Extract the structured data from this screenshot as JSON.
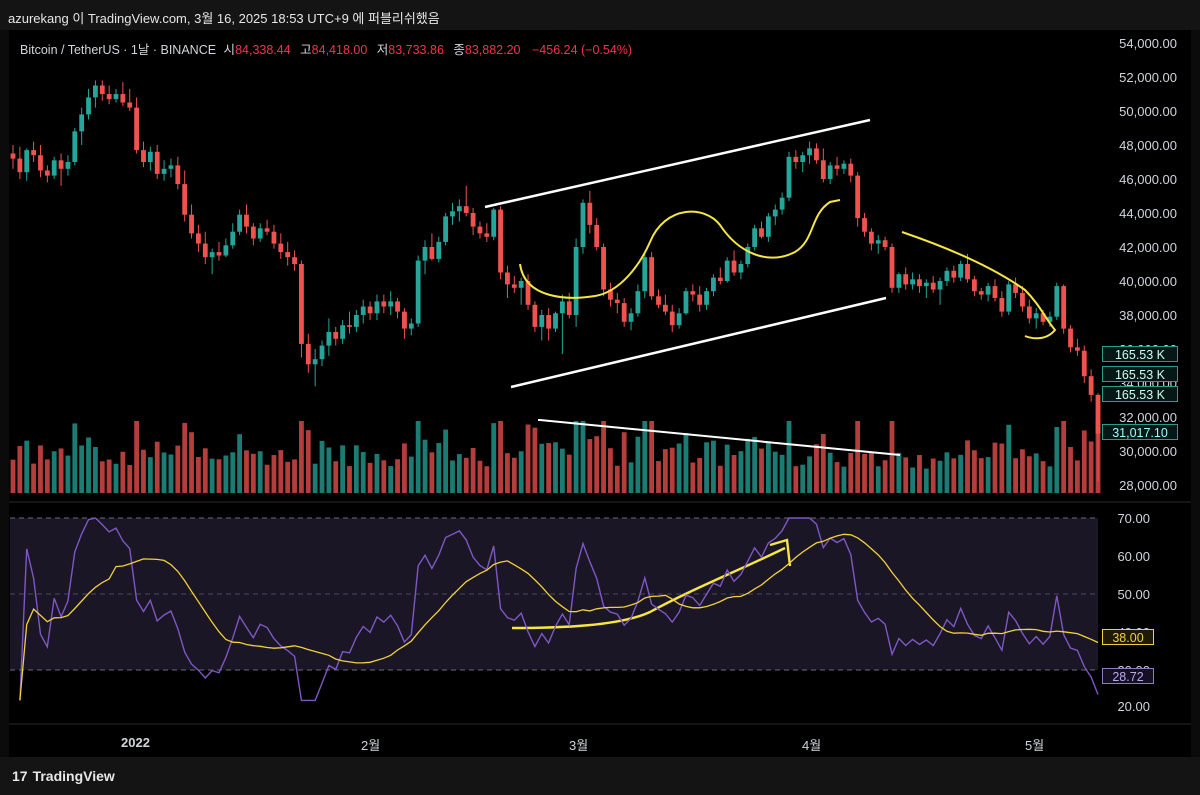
{
  "header": {
    "caption": "azurekang 이 TradingView.com, 3월 16, 2025 18:53 UTC+9 에 퍼블리쉬했음"
  },
  "legend": {
    "symbol": "Bitcoin / TetherUS · 1날 · BINANCE",
    "open_label": "시",
    "open_value": "84,338.44",
    "high_label": "고",
    "high_value": "84,418.00",
    "low_label": "저",
    "low_value": "83,733.86",
    "close_label": "종",
    "close_value": "83,882.20",
    "change": "−456.24 (−0.54%)"
  },
  "price_axis": [
    "54,000.00",
    "52,000.00",
    "50,000.00",
    "48,000.00",
    "46,000.00",
    "44,000.00",
    "42,000.00",
    "40,000.00",
    "38,000.00",
    "36,000.00",
    "34,000.00",
    "32,000.00",
    "30,000.00",
    "28,000.00"
  ],
  "price_tags": [
    {
      "label": "165.53 K",
      "kind": "volume"
    },
    {
      "label": "165.53 K",
      "kind": "volume"
    },
    {
      "label": "165.53 K",
      "kind": "volume"
    },
    {
      "label": "31,017.10",
      "kind": "price"
    }
  ],
  "rsi_axis": [
    "70.00",
    "60.00",
    "50.00",
    "40.00",
    "30.00",
    "20.00"
  ],
  "rsi_tags": [
    {
      "label": "38.00",
      "color": "#f0d13a"
    },
    {
      "label": "28.72",
      "color": "#8e7cc3"
    }
  ],
  "time_axis": [
    "2022",
    "2월",
    "3월",
    "4월",
    "5월"
  ],
  "footer": {
    "brand": "TradingView",
    "logo": "tradingview-logo-icon"
  },
  "colors": {
    "up": "#26a69a",
    "down": "#ef5350",
    "rsi": "#7e57c2",
    "rsi_ma": "#f0d13a",
    "annotation": "#f5e642",
    "trendline": "#ffffff",
    "background": "#000000"
  },
  "chart_data": {
    "type": "candlestick",
    "symbol": "BTCUSDT",
    "interval": "1D",
    "ylim": [
      28000,
      54000
    ],
    "candles_ohlc": [
      [
        47500,
        48000,
        46600,
        47200
      ],
      [
        47200,
        47900,
        46000,
        46400
      ],
      [
        46400,
        47800,
        45900,
        47700
      ],
      [
        47700,
        48200,
        47000,
        47400
      ],
      [
        47400,
        48000,
        46100,
        46500
      ],
      [
        46500,
        46800,
        45800,
        46200
      ],
      [
        46200,
        47300,
        46000,
        47100
      ],
      [
        47100,
        47500,
        45600,
        46600
      ],
      [
        46600,
        47400,
        46200,
        47000
      ],
      [
        47000,
        49000,
        46800,
        48800
      ],
      [
        48800,
        50200,
        48000,
        49800
      ],
      [
        49800,
        51300,
        49500,
        50800
      ],
      [
        50800,
        51800,
        50200,
        51500
      ],
      [
        51500,
        51800,
        50600,
        51000
      ],
      [
        51000,
        51500,
        50400,
        50700
      ],
      [
        50700,
        51300,
        50500,
        51000
      ],
      [
        51000,
        51700,
        50300,
        50500
      ],
      [
        50500,
        51300,
        50000,
        50200
      ],
      [
        50200,
        50800,
        47500,
        47700
      ],
      [
        47700,
        48200,
        46700,
        47000
      ],
      [
        47000,
        47900,
        46500,
        47600
      ],
      [
        47600,
        48000,
        46000,
        46300
      ],
      [
        46300,
        47100,
        45900,
        46600
      ],
      [
        46600,
        47200,
        46100,
        46800
      ],
      [
        46800,
        47300,
        45400,
        45700
      ],
      [
        45700,
        46500,
        43500,
        43900
      ],
      [
        43900,
        44500,
        42500,
        42800
      ],
      [
        42800,
        43300,
        41700,
        42200
      ],
      [
        42200,
        42900,
        41000,
        41400
      ],
      [
        41400,
        41900,
        40400,
        41700
      ],
      [
        41700,
        42300,
        41200,
        41500
      ],
      [
        41500,
        42500,
        41400,
        42100
      ],
      [
        42100,
        43400,
        41900,
        42900
      ],
      [
        42900,
        44200,
        42700,
        43900
      ],
      [
        43900,
        44500,
        42800,
        43200
      ],
      [
        43200,
        43400,
        42100,
        42500
      ],
      [
        42500,
        43400,
        42300,
        43100
      ],
      [
        43100,
        43600,
        42700,
        42900
      ],
      [
        42900,
        43300,
        41900,
        42200
      ],
      [
        42200,
        42800,
        41300,
        41700
      ],
      [
        41700,
        42300,
        40900,
        41400
      ],
      [
        41400,
        41800,
        40600,
        41000
      ],
      [
        41000,
        41200,
        35500,
        36300
      ],
      [
        36300,
        36900,
        34600,
        35100
      ],
      [
        35100,
        36000,
        33800,
        35400
      ],
      [
        35400,
        36500,
        35000,
        36200
      ],
      [
        36200,
        37800,
        35600,
        37000
      ],
      [
        37000,
        37300,
        36200,
        36600
      ],
      [
        36600,
        37700,
        36300,
        37400
      ],
      [
        37400,
        38200,
        36900,
        37300
      ],
      [
        37300,
        38300,
        37000,
        38000
      ],
      [
        38000,
        38900,
        37500,
        38500
      ],
      [
        38500,
        38800,
        37700,
        38100
      ],
      [
        38100,
        39200,
        37700,
        38800
      ],
      [
        38800,
        39200,
        38100,
        38500
      ],
      [
        38500,
        39400,
        38000,
        38800
      ],
      [
        38800,
        39000,
        37800,
        38200
      ],
      [
        38200,
        38400,
        36600,
        37200
      ],
      [
        37200,
        37800,
        36800,
        37500
      ],
      [
        37500,
        41500,
        37300,
        41200
      ],
      [
        41200,
        42400,
        40400,
        42000
      ],
      [
        42000,
        42800,
        41200,
        41300
      ],
      [
        41300,
        42600,
        41100,
        42300
      ],
      [
        42300,
        44000,
        42100,
        43800
      ],
      [
        43800,
        44600,
        43300,
        44100
      ],
      [
        44100,
        44800,
        43500,
        44400
      ],
      [
        44400,
        45600,
        43800,
        44000
      ],
      [
        44000,
        44300,
        42700,
        43200
      ],
      [
        43200,
        43500,
        42500,
        42800
      ],
      [
        42800,
        43400,
        42300,
        42600
      ],
      [
        42600,
        44300,
        42400,
        44200
      ],
      [
        44200,
        44400,
        40100,
        40500
      ],
      [
        40500,
        40900,
        39000,
        39800
      ],
      [
        39800,
        40300,
        39300,
        39600
      ],
      [
        39600,
        40200,
        38600,
        40000
      ],
      [
        40000,
        40400,
        38300,
        38600
      ],
      [
        38600,
        38800,
        37000,
        37300
      ],
      [
        37300,
        38300,
        36500,
        38000
      ],
      [
        38000,
        38400,
        36500,
        37200
      ],
      [
        37200,
        38200,
        37000,
        38100
      ],
      [
        38100,
        39200,
        35700,
        38800
      ],
      [
        38800,
        39300,
        37800,
        38000
      ],
      [
        38000,
        42500,
        37300,
        42000
      ],
      [
        42000,
        44800,
        41600,
        44600
      ],
      [
        44600,
        45300,
        42800,
        43300
      ],
      [
        43300,
        43700,
        41800,
        42000
      ],
      [
        42000,
        42200,
        39100,
        39500
      ],
      [
        39500,
        39900,
        38500,
        38900
      ],
      [
        38900,
        39300,
        38100,
        38700
      ],
      [
        38700,
        39000,
        37300,
        37600
      ],
      [
        37600,
        38400,
        37100,
        38100
      ],
      [
        38100,
        39800,
        37900,
        39400
      ],
      [
        39400,
        41600,
        39000,
        41400
      ],
      [
        41400,
        41700,
        38900,
        39100
      ],
      [
        39100,
        39500,
        38400,
        38600
      ],
      [
        38600,
        39200,
        38000,
        38200
      ],
      [
        38200,
        38600,
        37000,
        37400
      ],
      [
        37400,
        38400,
        37200,
        38100
      ],
      [
        38100,
        39600,
        38000,
        39400
      ],
      [
        39400,
        39800,
        38800,
        39200
      ],
      [
        39200,
        39700,
        38200,
        38600
      ],
      [
        38600,
        39600,
        38300,
        39400
      ],
      [
        39400,
        40400,
        39100,
        40200
      ],
      [
        40200,
        40800,
        39800,
        40000
      ],
      [
        40000,
        41400,
        39900,
        41200
      ],
      [
        41200,
        41800,
        40300,
        40500
      ],
      [
        40500,
        41200,
        40100,
        41000
      ],
      [
        41000,
        42200,
        40800,
        42000
      ],
      [
        42000,
        43300,
        41800,
        43100
      ],
      [
        43100,
        43500,
        42500,
        42600
      ],
      [
        42600,
        44000,
        42300,
        43800
      ],
      [
        43800,
        44500,
        43300,
        44200
      ],
      [
        44200,
        45200,
        43900,
        44900
      ],
      [
        44900,
        47600,
        44700,
        47300
      ],
      [
        47300,
        47700,
        46600,
        47000
      ],
      [
        47000,
        47600,
        46400,
        47400
      ],
      [
        47400,
        48200,
        46900,
        47800
      ],
      [
        47800,
        48100,
        46900,
        47100
      ],
      [
        47100,
        47800,
        45800,
        46000
      ],
      [
        46000,
        47000,
        45700,
        46800
      ],
      [
        46800,
        47300,
        46200,
        46600
      ],
      [
        46600,
        47100,
        46300,
        46900
      ],
      [
        46900,
        47200,
        45800,
        46200
      ],
      [
        46200,
        46400,
        43200,
        43700
      ],
      [
        43700,
        44000,
        42600,
        42900
      ],
      [
        42900,
        43100,
        41800,
        42200
      ],
      [
        42200,
        42700,
        41600,
        42400
      ],
      [
        42400,
        42600,
        41800,
        42000
      ],
      [
        42000,
        42200,
        39300,
        39600
      ],
      [
        39600,
        40500,
        39300,
        40400
      ],
      [
        40400,
        40800,
        39500,
        39800
      ],
      [
        39800,
        40500,
        39500,
        40100
      ],
      [
        40100,
        40400,
        39300,
        39700
      ],
      [
        39700,
        40100,
        39000,
        39900
      ],
      [
        39900,
        40300,
        39300,
        39500
      ],
      [
        39500,
        40200,
        38600,
        40000
      ],
      [
        40000,
        40800,
        39700,
        40600
      ],
      [
        40600,
        40900,
        39900,
        40200
      ],
      [
        40200,
        41200,
        40000,
        41000
      ],
      [
        41000,
        41600,
        39900,
        40100
      ],
      [
        40100,
        40300,
        39100,
        39400
      ],
      [
        39400,
        39600,
        38900,
        39200
      ],
      [
        39200,
        39900,
        38800,
        39700
      ],
      [
        39700,
        40100,
        38800,
        39000
      ],
      [
        39000,
        39400,
        37900,
        38200
      ],
      [
        38200,
        40000,
        38000,
        39800
      ],
      [
        39800,
        40200,
        39000,
        39300
      ],
      [
        39300,
        39700,
        38200,
        38500
      ],
      [
        38500,
        38900,
        37500,
        37800
      ],
      [
        37800,
        38400,
        37200,
        38100
      ],
      [
        38100,
        38300,
        37400,
        37600
      ],
      [
        37600,
        38200,
        37300,
        37900
      ],
      [
        37900,
        39900,
        37700,
        39700
      ],
      [
        39700,
        39800,
        36900,
        37200
      ],
      [
        37200,
        37400,
        35800,
        36100
      ],
      [
        36100,
        36600,
        35600,
        35900
      ],
      [
        35900,
        36200,
        34000,
        34400
      ],
      [
        34400,
        34800,
        32900,
        33300
      ],
      [
        33300,
        33400,
        28200,
        31017
      ]
    ]
  }
}
